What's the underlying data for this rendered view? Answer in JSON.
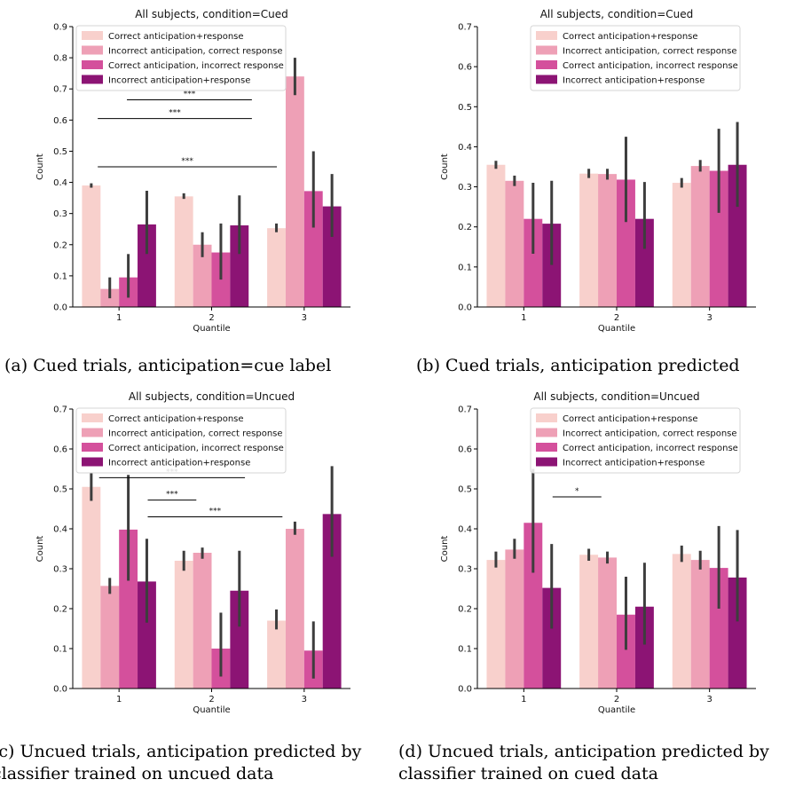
{
  "legend_labels": [
    "Correct anticipation+response",
    "Incorrect anticipation, correct response",
    "Correct anticipation, incorrect response",
    "Incorrect anticipation+response"
  ],
  "colors": [
    "#f8d0cc",
    "#eea0b6",
    "#d4509c",
    "#8c1474"
  ],
  "chart_data": [
    {
      "type": "bar",
      "title": "All subjects, condition=Cued",
      "xlabel": "Quantile",
      "ylabel": "Count",
      "categories": [
        "1",
        "2",
        "3"
      ],
      "ylim": [
        0,
        0.9
      ],
      "yticks": [
        "0.0",
        "0.1",
        "0.2",
        "0.3",
        "0.4",
        "0.5",
        "0.6",
        "0.7",
        "0.8",
        "0.9"
      ],
      "series": [
        {
          "name": "Correct anticipation+response",
          "values": [
            0.39,
            0.355,
            0.253
          ],
          "err": [
            [
              0.383,
              0.397
            ],
            [
              0.347,
              0.365
            ],
            [
              0.24,
              0.268
            ]
          ]
        },
        {
          "name": "Incorrect anticipation, correct response",
          "values": [
            0.058,
            0.2,
            0.74
          ],
          "err": [
            [
              0.028,
              0.095
            ],
            [
              0.16,
              0.24
            ],
            [
              0.68,
              0.8
            ]
          ]
        },
        {
          "name": "Correct anticipation, incorrect response",
          "values": [
            0.095,
            0.175,
            0.372
          ],
          "err": [
            [
              0.03,
              0.17
            ],
            [
              0.088,
              0.268
            ],
            [
              0.255,
              0.5
            ]
          ]
        },
        {
          "name": "Incorrect anticipation+response",
          "values": [
            0.265,
            0.262,
            0.323
          ],
          "err": [
            [
              0.17,
              0.373
            ],
            [
              0.17,
              0.358
            ],
            [
              0.225,
              0.427
            ]
          ]
        }
      ],
      "sig": [
        {
          "label": "***",
          "x1": 0.195,
          "x2": 0.645,
          "y": 0.665
        },
        {
          "label": "***",
          "x1": 0.09,
          "x2": 0.645,
          "y": 0.605
        },
        {
          "label": "***",
          "x1": 0.09,
          "x2": 0.735,
          "y": 0.45
        }
      ],
      "caption": "(a) Cued trials, anticipation=cue label"
    },
    {
      "type": "bar",
      "title": "All subjects, condition=Cued",
      "xlabel": "Quantile",
      "ylabel": "Count",
      "categories": [
        "1",
        "2",
        "3"
      ],
      "ylim": [
        0,
        0.7
      ],
      "yticks": [
        "0.0",
        "0.1",
        "0.2",
        "0.3",
        "0.4",
        "0.5",
        "0.6",
        "0.7"
      ],
      "series": [
        {
          "name": "Correct anticipation+response",
          "values": [
            0.355,
            0.333,
            0.31
          ],
          "err": [
            [
              0.345,
              0.365
            ],
            [
              0.322,
              0.345
            ],
            [
              0.298,
              0.322
            ]
          ]
        },
        {
          "name": "Incorrect anticipation, correct response",
          "values": [
            0.315,
            0.332,
            0.352
          ],
          "err": [
            [
              0.302,
              0.328
            ],
            [
              0.318,
              0.345
            ],
            [
              0.338,
              0.367
            ]
          ]
        },
        {
          "name": "Correct anticipation, incorrect response",
          "values": [
            0.22,
            0.318,
            0.34
          ],
          "err": [
            [
              0.133,
              0.31
            ],
            [
              0.212,
              0.425
            ],
            [
              0.235,
              0.445
            ]
          ]
        },
        {
          "name": "Incorrect anticipation+response",
          "values": [
            0.208,
            0.22,
            0.355
          ],
          "err": [
            [
              0.105,
              0.315
            ],
            [
              0.145,
              0.312
            ],
            [
              0.25,
              0.462
            ]
          ]
        }
      ],
      "sig": [],
      "caption": "(b) Cued trials, anticipation predicted"
    },
    {
      "type": "bar",
      "title": "All subjects, condition=Uncued",
      "xlabel": "Quantile",
      "ylabel": "Count",
      "categories": [
        "1",
        "2",
        "3"
      ],
      "ylim": [
        0,
        0.7
      ],
      "yticks": [
        "0.0",
        "0.1",
        "0.2",
        "0.3",
        "0.4",
        "0.5",
        "0.6",
        "0.7"
      ],
      "series": [
        {
          "name": "Correct anticipation+response",
          "values": [
            0.505,
            0.32,
            0.17
          ],
          "err": [
            [
              0.47,
              0.54
            ],
            [
              0.295,
              0.345
            ],
            [
              0.148,
              0.198
            ]
          ]
        },
        {
          "name": "Incorrect anticipation, correct response",
          "values": [
            0.257,
            0.34,
            0.4
          ],
          "err": [
            [
              0.237,
              0.277
            ],
            [
              0.325,
              0.353
            ],
            [
              0.385,
              0.418
            ]
          ]
        },
        {
          "name": "Correct anticipation, incorrect response",
          "values": [
            0.398,
            0.1,
            0.095
          ],
          "err": [
            [
              0.27,
              0.535
            ],
            [
              0.03,
              0.19
            ],
            [
              0.025,
              0.168
            ]
          ]
        },
        {
          "name": "Incorrect anticipation+response",
          "values": [
            0.268,
            0.245,
            0.437
          ],
          "err": [
            [
              0.165,
              0.375
            ],
            [
              0.155,
              0.345
            ],
            [
              0.33,
              0.557
            ]
          ]
        }
      ],
      "sig": [
        {
          "label": "***",
          "x1": 0.095,
          "x2": 0.62,
          "y": 0.528
        },
        {
          "label": "***",
          "x1": 0.27,
          "x2": 0.445,
          "y": 0.472
        },
        {
          "label": "***",
          "x1": 0.27,
          "x2": 0.755,
          "y": 0.43
        }
      ],
      "caption": "(c) Uncued trials, anticipation predicted by\nclassifier trained on uncued data"
    },
    {
      "type": "bar",
      "title": "All subjects, condition=Uncued",
      "xlabel": "Quantile",
      "ylabel": "Count",
      "categories": [
        "1",
        "2",
        "3"
      ],
      "ylim": [
        0,
        0.7
      ],
      "yticks": [
        "0.0",
        "0.1",
        "0.2",
        "0.3",
        "0.4",
        "0.5",
        "0.6",
        "0.7"
      ],
      "series": [
        {
          "name": "Correct anticipation+response",
          "values": [
            0.322,
            0.335,
            0.337
          ],
          "err": [
            [
              0.303,
              0.343
            ],
            [
              0.32,
              0.35
            ],
            [
              0.317,
              0.358
            ]
          ]
        },
        {
          "name": "Incorrect anticipation, correct response",
          "values": [
            0.348,
            0.328,
            0.322
          ],
          "err": [
            [
              0.325,
              0.375
            ],
            [
              0.313,
              0.343
            ],
            [
              0.298,
              0.345
            ]
          ]
        },
        {
          "name": "Correct anticipation, incorrect response",
          "values": [
            0.415,
            0.185,
            0.302
          ],
          "err": [
            [
              0.29,
              0.55
            ],
            [
              0.097,
              0.28
            ],
            [
              0.2,
              0.407
            ]
          ]
        },
        {
          "name": "Incorrect anticipation+response",
          "values": [
            0.252,
            0.205,
            0.278
          ],
          "err": [
            [
              0.15,
              0.362
            ],
            [
              0.11,
              0.315
            ],
            [
              0.168,
              0.397
            ]
          ]
        }
      ],
      "sig": [
        {
          "label": "*",
          "x1": 0.27,
          "x2": 0.445,
          "y": 0.48
        }
      ],
      "caption": "(d) Uncued trials, anticipation predicted by\nclassifier trained on cued data"
    }
  ]
}
